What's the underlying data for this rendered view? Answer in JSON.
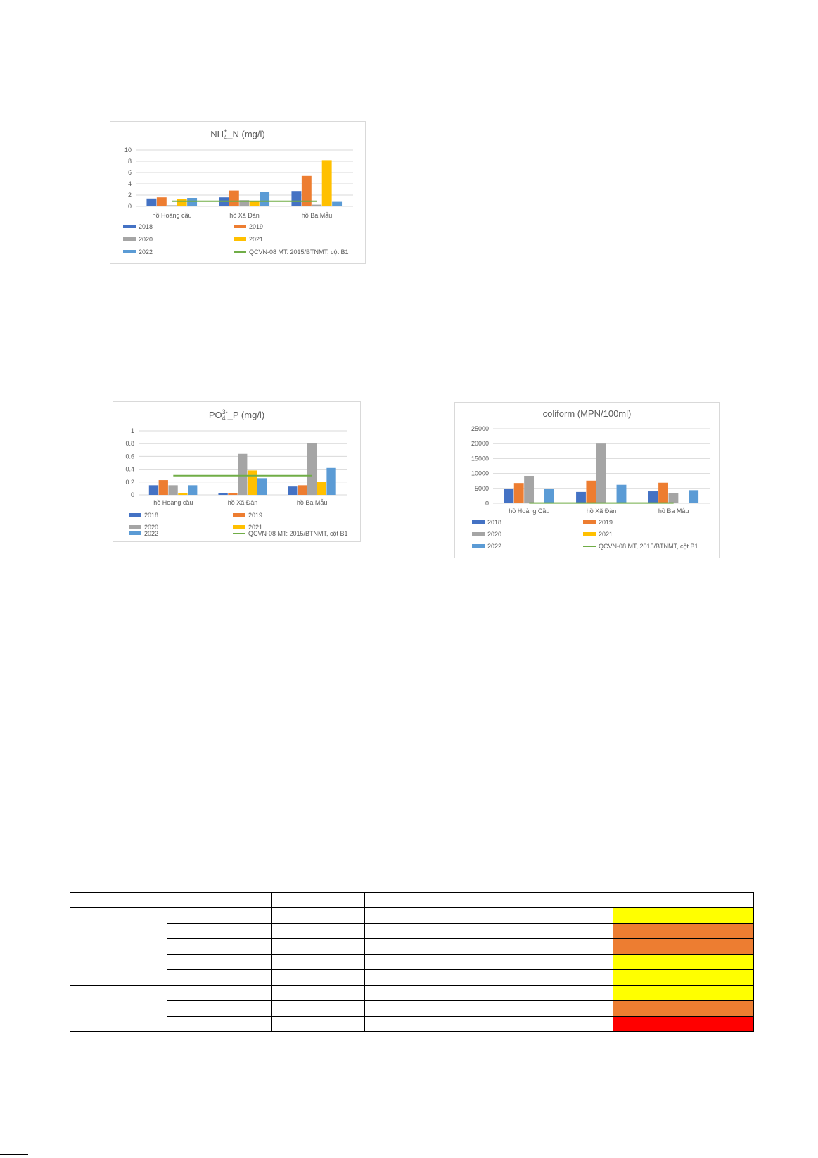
{
  "colors": {
    "2018": "#4472C4",
    "2019": "#ED7D31",
    "2020": "#A5A5A5",
    "2021": "#FFC000",
    "2022": "#5B9BD5",
    "standard": "#70AD47",
    "grid": "#d9d9d9",
    "table_yellow": "#FFFF00",
    "table_orange": "#ED7D31",
    "table_red": "#FF0000"
  },
  "chart_data": [
    {
      "id": "nh4",
      "type": "bar",
      "title_main": "NH",
      "title_sub": "4",
      "title_sup": "+",
      "title_rest": "_N (mg/l)",
      "categories": [
        "hồ Hoàng cầu",
        "hồ Xã Đàn",
        "hồ Ba Mẫu"
      ],
      "ylim": [
        0,
        10
      ],
      "yticks": [
        "0",
        "2",
        "4",
        "6",
        "8",
        "10"
      ],
      "ytick_values": [
        0,
        2,
        4,
        6,
        8,
        10
      ],
      "grid": true,
      "legend_position": "bottom",
      "series": [
        {
          "name": "2018",
          "color_key": "2018",
          "values": [
            1.4,
            1.6,
            2.6
          ]
        },
        {
          "name": "2019",
          "color_key": "2019",
          "values": [
            1.6,
            2.8,
            5.4
          ]
        },
        {
          "name": "2020",
          "color_key": "2020",
          "values": [
            0.2,
            1.1,
            0.3
          ]
        },
        {
          "name": "2021",
          "color_key": "2021",
          "values": [
            1.3,
            1.0,
            8.2
          ]
        },
        {
          "name": "2022",
          "color_key": "2022",
          "values": [
            1.5,
            2.5,
            0.8
          ]
        }
      ],
      "standard": {
        "name": "QCVN-08 MT: 2015/BTNMT, cột B1",
        "value": 0.9
      }
    },
    {
      "id": "po4",
      "type": "bar",
      "title_main": "PO",
      "title_sub": "4",
      "title_sup": "3-",
      "title_rest": "_P (mg/l)",
      "categories": [
        "hồ Hoàng cầu",
        "hồ Xã Đàn",
        "hồ Ba Mẫu"
      ],
      "ylim": [
        0,
        1
      ],
      "yticks": [
        "0",
        "0.2",
        "0.4",
        "0.6",
        "0.8",
        "1"
      ],
      "ytick_values": [
        0,
        0.2,
        0.4,
        0.6,
        0.8,
        1
      ],
      "grid": true,
      "legend_position": "bottom",
      "series": [
        {
          "name": "2018",
          "color_key": "2018",
          "values": [
            0.15,
            0.03,
            0.13
          ]
        },
        {
          "name": "2019",
          "color_key": "2019",
          "values": [
            0.23,
            0.03,
            0.15
          ]
        },
        {
          "name": "2020",
          "color_key": "2020",
          "values": [
            0.15,
            0.64,
            0.81
          ]
        },
        {
          "name": "2021",
          "color_key": "2021",
          "values": [
            0.03,
            0.38,
            0.2
          ]
        },
        {
          "name": "2022",
          "color_key": "2022",
          "values": [
            0.15,
            0.26,
            0.42
          ]
        }
      ],
      "standard": {
        "name": "QCVN-08 MT: 2015/BTNMT, cột B1",
        "value": 0.3
      }
    },
    {
      "id": "coliform",
      "type": "bar",
      "title_main": "coliform (MPN/100ml)",
      "title_sub": "",
      "title_sup": "",
      "title_rest": "",
      "categories": [
        "hồ Hoàng Cầu",
        "hồ Xã Đàn",
        "hồ Ba Mẫu"
      ],
      "ylim": [
        0,
        25000
      ],
      "yticks": [
        "0",
        "5000",
        "10000",
        "15000",
        "20000",
        "25000"
      ],
      "ytick_values": [
        0,
        5000,
        10000,
        15000,
        20000,
        25000
      ],
      "grid": true,
      "legend_position": "bottom",
      "series": [
        {
          "name": "2018",
          "color_key": "2018",
          "values": [
            4900,
            3800,
            4000
          ]
        },
        {
          "name": "2019",
          "color_key": "2019",
          "values": [
            6800,
            7600,
            6900
          ]
        },
        {
          "name": "2020",
          "color_key": "2020",
          "values": [
            9200,
            20000,
            3500
          ]
        },
        {
          "name": "2021",
          "color_key": "2021",
          "values": [
            0,
            0,
            0
          ]
        },
        {
          "name": "2022",
          "color_key": "2022",
          "values": [
            4800,
            6200,
            4400
          ]
        }
      ],
      "standard": {
        "name": "QCVN-08 MT, 2015/BTNMT, cột B1",
        "value": 100
      }
    }
  ],
  "table": {
    "rows": [
      {
        "c0": "",
        "c1": "",
        "c2": "",
        "c3": "",
        "c4": "",
        "fill": ""
      },
      {
        "c0": "",
        "c1": "",
        "c2": "",
        "c3": "",
        "c4": "",
        "fill": "table_yellow"
      },
      {
        "c0": "",
        "c1": "",
        "c2": "",
        "c3": "",
        "c4": "",
        "fill": "table_orange"
      },
      {
        "c0": "",
        "c1": "",
        "c2": "",
        "c3": "",
        "c4": "",
        "fill": "table_orange"
      },
      {
        "c0": "",
        "c1": "",
        "c2": "",
        "c3": "",
        "c4": "",
        "fill": "table_yellow"
      },
      {
        "c0": "",
        "c1": "",
        "c2": "",
        "c3": "",
        "c4": "",
        "fill": "table_yellow"
      },
      {
        "c0": "",
        "c1": "",
        "c2": "",
        "c3": "",
        "c4": "",
        "fill": "table_yellow"
      },
      {
        "c0": "",
        "c1": "",
        "c2": "",
        "c3": "",
        "c4": "",
        "fill": "table_orange"
      },
      {
        "c0": "",
        "c1": "",
        "c2": "",
        "c3": "",
        "c4": "",
        "fill": "table_red"
      }
    ]
  }
}
